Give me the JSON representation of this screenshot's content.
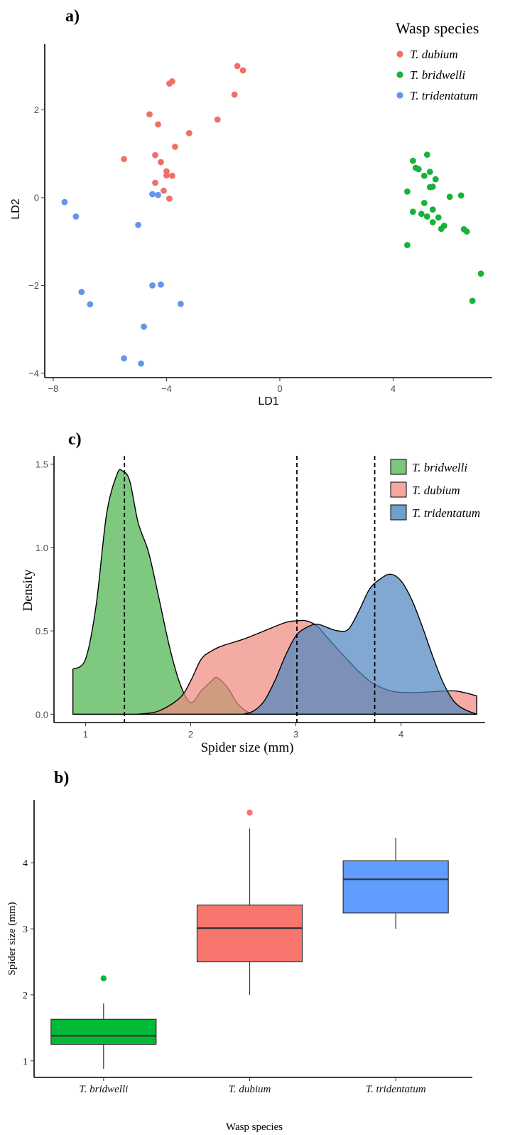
{
  "panel_a": {
    "label": "a)",
    "legend_title": "Wasp species",
    "legend_items": [
      {
        "label": "T. dubium",
        "color": "#ee7167"
      },
      {
        "label": "T. bridwelli",
        "color": "#18b23b"
      },
      {
        "label": "T. tridentatum",
        "color": "#6495ed"
      }
    ]
  },
  "panel_c": {
    "label": "c)"
  },
  "panel_b": {
    "label": "b)"
  },
  "chart_data": [
    {
      "type": "scatter",
      "xlabel": "LD1",
      "ylabel": "LD2",
      "xlim": [
        -8.3,
        7.5
      ],
      "ylim": [
        -4.1,
        3.5
      ],
      "xticks": [
        -8,
        -4,
        0,
        4
      ],
      "yticks": [
        -4,
        -2,
        0,
        2
      ],
      "grid": false,
      "legend_position": "top-right",
      "series": [
        {
          "name": "T. dubium",
          "color": "#ee7167",
          "points": [
            [
              -1.5,
              3.0
            ],
            [
              -1.3,
              2.9
            ],
            [
              -3.8,
              2.65
            ],
            [
              -3.9,
              2.6
            ],
            [
              -1.6,
              2.35
            ],
            [
              -4.6,
              1.9
            ],
            [
              -2.2,
              1.78
            ],
            [
              -4.3,
              1.67
            ],
            [
              -3.2,
              1.47
            ],
            [
              -3.7,
              1.16
            ],
            [
              -4.4,
              0.97
            ],
            [
              -5.5,
              0.88
            ],
            [
              -4.2,
              0.81
            ],
            [
              -4.0,
              0.6
            ],
            [
              -4.0,
              0.51
            ],
            [
              -3.8,
              0.5
            ],
            [
              -4.4,
              0.34
            ],
            [
              -4.1,
              0.16
            ],
            [
              -3.9,
              -0.02
            ]
          ]
        },
        {
          "name": "T. bridwelli",
          "color": "#18b23b",
          "points": [
            [
              5.2,
              0.98
            ],
            [
              4.7,
              0.84
            ],
            [
              4.8,
              0.68
            ],
            [
              4.9,
              0.65
            ],
            [
              5.3,
              0.59
            ],
            [
              5.1,
              0.5
            ],
            [
              5.5,
              0.42
            ],
            [
              5.3,
              0.24
            ],
            [
              5.4,
              0.25
            ],
            [
              4.5,
              0.14
            ],
            [
              6.4,
              0.05
            ],
            [
              6.0,
              0.02
            ],
            [
              5.1,
              -0.12
            ],
            [
              5.4,
              -0.27
            ],
            [
              4.7,
              -0.32
            ],
            [
              5.0,
              -0.37
            ],
            [
              5.2,
              -0.43
            ],
            [
              5.6,
              -0.45
            ],
            [
              5.4,
              -0.56
            ],
            [
              5.8,
              -0.64
            ],
            [
              5.7,
              -0.71
            ],
            [
              6.5,
              -0.72
            ],
            [
              6.6,
              -0.77
            ],
            [
              4.5,
              -1.08
            ],
            [
              7.1,
              -1.73
            ],
            [
              6.8,
              -2.35
            ]
          ]
        },
        {
          "name": "T. tridentatum",
          "color": "#6495ed",
          "points": [
            [
              -7.6,
              -0.1
            ],
            [
              -4.5,
              0.08
            ],
            [
              -4.3,
              0.06
            ],
            [
              -7.2,
              -0.43
            ],
            [
              -5.0,
              -0.62
            ],
            [
              -4.5,
              -2.0
            ],
            [
              -4.2,
              -1.98
            ],
            [
              -7.0,
              -2.15
            ],
            [
              -6.7,
              -2.43
            ],
            [
              -3.5,
              -2.42
            ],
            [
              -4.8,
              -2.94
            ],
            [
              -5.5,
              -3.66
            ],
            [
              -4.9,
              -3.78
            ]
          ]
        }
      ]
    },
    {
      "type": "area",
      "xlabel": "Spider size (mm)",
      "ylabel": "Density",
      "xlim": [
        0.7,
        4.8
      ],
      "ylim": [
        -0.05,
        1.55
      ],
      "xticks": [
        1,
        2,
        3,
        4
      ],
      "yticks": [
        0.0,
        0.5,
        1.0,
        1.5
      ],
      "grid": false,
      "legend_position": "top-right",
      "reference_lines": [
        1.37,
        3.01,
        3.75
      ],
      "series": [
        {
          "name": "T. bridwelli",
          "color": "#4db34d",
          "x": [
            0.88,
            1.0,
            1.1,
            1.2,
            1.3,
            1.35,
            1.42,
            1.5,
            1.6,
            1.7,
            1.8,
            1.9,
            2.0,
            2.1,
            2.2,
            2.25,
            2.35,
            2.45,
            2.55,
            2.6
          ],
          "y": [
            0.27,
            0.33,
            0.65,
            1.2,
            1.44,
            1.46,
            1.4,
            1.15,
            0.97,
            0.69,
            0.4,
            0.18,
            0.07,
            0.14,
            0.2,
            0.22,
            0.16,
            0.06,
            0.01,
            0.0
          ]
        },
        {
          "name": "T. dubium",
          "color": "#f08a80",
          "x": [
            1.5,
            1.7,
            1.9,
            2.0,
            2.1,
            2.2,
            2.3,
            2.5,
            2.7,
            2.9,
            3.0,
            3.1,
            3.2,
            3.3,
            3.5,
            3.7,
            3.9,
            4.1,
            4.3,
            4.5,
            4.6,
            4.72
          ],
          "y": [
            0.0,
            0.02,
            0.1,
            0.2,
            0.33,
            0.38,
            0.41,
            0.45,
            0.5,
            0.55,
            0.56,
            0.56,
            0.53,
            0.46,
            0.32,
            0.2,
            0.14,
            0.13,
            0.135,
            0.14,
            0.13,
            0.11
          ]
        },
        {
          "name": "T. tridentatum",
          "color": "#4f86c0",
          "x": [
            2.5,
            2.6,
            2.7,
            2.8,
            2.9,
            3.0,
            3.1,
            3.2,
            3.3,
            3.4,
            3.5,
            3.6,
            3.7,
            3.8,
            3.9,
            4.0,
            4.1,
            4.2,
            4.3,
            4.4,
            4.5,
            4.6,
            4.72
          ],
          "y": [
            0.0,
            0.02,
            0.08,
            0.2,
            0.35,
            0.47,
            0.52,
            0.54,
            0.52,
            0.5,
            0.51,
            0.62,
            0.75,
            0.81,
            0.84,
            0.8,
            0.69,
            0.53,
            0.35,
            0.19,
            0.08,
            0.03,
            0.0
          ]
        }
      ]
    },
    {
      "type": "box",
      "xlabel": "Wasp species",
      "ylabel": "Spider size (mm)",
      "ylim": [
        0.75,
        4.95
      ],
      "yticks": [
        1,
        2,
        3,
        4
      ],
      "grid": false,
      "categories": [
        "T. bridwelli",
        "T. dubium",
        "T. tridentatum"
      ],
      "boxes": [
        {
          "name": "T. bridwelli",
          "color": "#00ba38",
          "min": 0.88,
          "q1": 1.25,
          "median": 1.38,
          "q3": 1.63,
          "max": 1.87,
          "outliers": [
            2.25
          ]
        },
        {
          "name": "T. dubium",
          "color": "#f8766d",
          "min": 2.0,
          "q1": 2.5,
          "median": 3.01,
          "q3": 3.36,
          "max": 4.52,
          "outliers": [
            4.76
          ]
        },
        {
          "name": "T. tridentatum",
          "color": "#619cff",
          "min": 3.0,
          "q1": 3.24,
          "median": 3.75,
          "q3": 4.03,
          "max": 4.38,
          "outliers": []
        }
      ]
    }
  ]
}
